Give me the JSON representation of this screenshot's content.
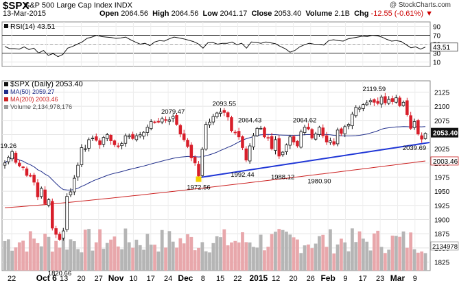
{
  "header": {
    "symbol": "$SPX",
    "name": "S&P 500 Large Cap Index",
    "exchange": "INDX",
    "date": "13-Mar-2015",
    "open_label": "Open",
    "open": "2064.56",
    "high_label": "High",
    "high": "2064.56",
    "low_label": "Low",
    "low": "2041.17",
    "close_label": "Close",
    "close": "2053.40",
    "volume_label": "Volume",
    "volume": "2.1B",
    "chg_label": "Chg",
    "chg": "-12.55 (-0.61%)",
    "copyright": "@ StockCharts.com"
  },
  "colors": {
    "up": "#111111",
    "down": "#d81e2a",
    "ma50": "#1f2d8a",
    "ma200": "#cc2222",
    "trend": "#1f36d6",
    "volume": "#9a9a9a"
  },
  "chart_data": [
    {
      "type": "line",
      "title": "RSI(14) 43.51",
      "legend": "RSI(14) 43.51",
      "ylim": [
        0,
        100
      ],
      "y_ticks": [
        "90",
        "70",
        "50",
        "30",
        "10"
      ],
      "reference_lines": [
        70,
        30
      ],
      "last_value_label": "43.51",
      "values": [
        45,
        40,
        40,
        39,
        44,
        38,
        41,
        30,
        36,
        25,
        29,
        22,
        27,
        41,
        45,
        50,
        55,
        63,
        66,
        70,
        67,
        66,
        65,
        63,
        64,
        66,
        60,
        55,
        50,
        52,
        47,
        55,
        58,
        57,
        62,
        66,
        64,
        62,
        59,
        56,
        51,
        41,
        53,
        54,
        50,
        52,
        52,
        55,
        49,
        52,
        41,
        55,
        54,
        52,
        55,
        53,
        51,
        45,
        40,
        32,
        36,
        44,
        49,
        52,
        50,
        50,
        48,
        58,
        60,
        58,
        57,
        62,
        64,
        66,
        68,
        67,
        70,
        69,
        66,
        61,
        57,
        58,
        56,
        49,
        42,
        44,
        39,
        43.5
      ]
    },
    {
      "type": "candlestick",
      "title": "$SPX (Daily) 2053.40",
      "legend": [
        "$SPX (Daily) 2053.40",
        "MA(50) 2059.27",
        "MA(200) 2003.46",
        "Volume 2,134,978,176"
      ],
      "ylim": [
        1810,
        2140
      ],
      "y_ticks": [
        "2125",
        "2100",
        "2075",
        "2050",
        "2025",
        "2000",
        "1975",
        "1950",
        "1925",
        "1900",
        "1875",
        "1850",
        "1825"
      ],
      "x_tick_labels": [
        "22",
        "Oct 6",
        "13",
        "20",
        "27",
        "Nov",
        "10",
        "17",
        "24",
        "Dec",
        "8",
        "15",
        "22",
        "2015",
        "12",
        "20",
        "26",
        "Feb",
        "9",
        "17",
        "23",
        "Mar",
        "9"
      ],
      "closes": [
        2000,
        2010,
        2020,
        2001,
        1995,
        1992,
        1978,
        1977,
        1966,
        1940,
        1955,
        1928,
        1935,
        1885,
        1874,
        1865,
        1880,
        1941,
        1949,
        1973,
        1996,
        2027,
        2025,
        2041,
        2044,
        2040,
        2032,
        2045,
        2050,
        2039,
        2032,
        2029,
        2034,
        2048,
        2048,
        2043,
        2048,
        2050,
        2054,
        2063,
        2073,
        2072,
        2072,
        2078,
        2075,
        2076,
        2082,
        2068,
        2051,
        2041,
        2029,
        2009,
        2000,
        1977,
        2024,
        2068,
        2072,
        2082,
        2088,
        2090,
        2089,
        2081,
        2057,
        2053,
        2046,
        2027,
        2005,
        2030,
        2048,
        2061,
        2061,
        2046,
        2044,
        2025,
        2041,
        2012,
        2019,
        2032,
        2046,
        2037,
        2030,
        2055,
        2063,
        2060,
        2044,
        2051,
        2063,
        2048,
        2037,
        2039,
        2033,
        2058,
        2052,
        2064,
        2068,
        2086,
        2098,
        2097,
        2103,
        2106,
        2110,
        2107,
        2105,
        2116,
        2106,
        2112,
        2108,
        2115,
        2101,
        2107,
        2085,
        2061,
        2073,
        2051,
        2042,
        2052
      ],
      "ma50_last": 2059.27,
      "ma200_last": 2003.46,
      "close_label": "2053.40",
      "ma200_label": "2003.46",
      "volume_label": "2134978",
      "annotations": [
        {
          "text": "2019.26",
          "value": 2019.26
        },
        {
          "text": "1820.66",
          "value": 1820.66
        },
        {
          "text": "2079.47",
          "value": 2079.47
        },
        {
          "text": "1972.56",
          "value": 1972.56
        },
        {
          "text": "2093.55",
          "value": 2093.55
        },
        {
          "text": "2064.43",
          "value": 2064.43
        },
        {
          "text": "1992.44",
          "value": 1992.44
        },
        {
          "text": "2064.62",
          "value": 2064.62
        },
        {
          "text": "1988.12",
          "value": 1988.12
        },
        {
          "text": "1980.90",
          "value": 1980.9
        },
        {
          "text": "2119.59",
          "value": 2119.59
        },
        {
          "text": "2039.69",
          "value": 2039.69
        }
      ]
    }
  ]
}
